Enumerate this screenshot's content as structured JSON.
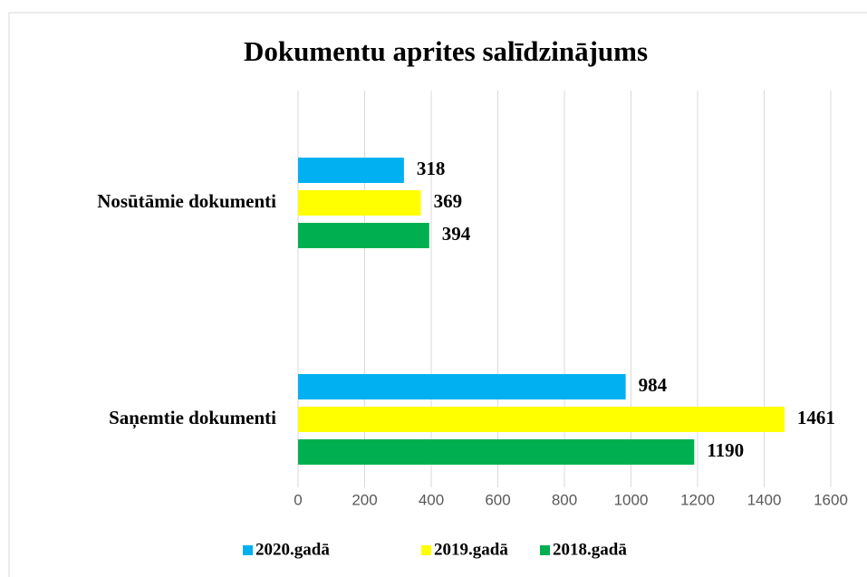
{
  "chart_data": {
    "type": "bar",
    "orientation": "horizontal",
    "title": "Dokumentu aprites salīdzinājums",
    "categories": [
      "Nosūtāmie dokumenti",
      "Saņemtie dokumenti"
    ],
    "series": [
      {
        "name": "2020.gadā",
        "color": "#00b0f0",
        "values": [
          318,
          984
        ]
      },
      {
        "name": "2019.gadā",
        "color": "#ffff00",
        "values": [
          369,
          1461
        ]
      },
      {
        "name": "2018.gadā",
        "color": "#00b050",
        "values": [
          394,
          1190
        ]
      }
    ],
    "xlim": [
      0,
      1600
    ],
    "xticks": [
      0,
      200,
      400,
      600,
      800,
      1000,
      1200,
      1400,
      1600
    ],
    "grid": true,
    "legend": "bottom"
  }
}
